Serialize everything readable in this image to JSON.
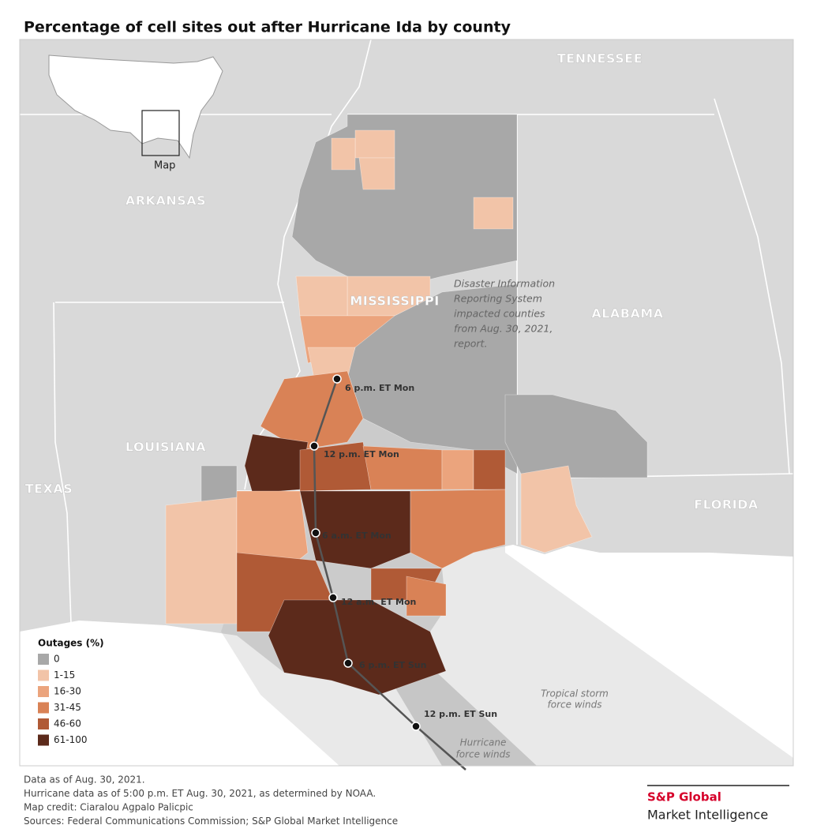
{
  "title": "Percentage of cell sites out after Hurricane Ida by county",
  "inset_label": "Map",
  "state_labels": [
    "TENNESSEE",
    "ARKANSAS",
    "MISSISSIPPI",
    "ALABAMA",
    "LOUISIANA",
    "TEXAS",
    "FLORIDA"
  ],
  "annotation": [
    "Disaster Information",
    "Reporting System",
    "impacted counties",
    "from Aug. 30, 2021,",
    "report."
  ],
  "track_labels": [
    "6 p.m. ET Mon",
    "12 p.m. ET Mon",
    "6 a.m. ET Mon",
    "12 a.m. ET Mon",
    "6 p.m. ET Sun",
    "12 p.m. ET Sun"
  ],
  "wind_labels": {
    "tropical": [
      "Tropical storm",
      "force winds"
    ],
    "hurricane": [
      "Hurricane",
      "force winds"
    ]
  },
  "legend": {
    "title": "Outages (%)",
    "items": [
      {
        "label": "0",
        "color": "#a8a8a8"
      },
      {
        "label": "1-15",
        "color": "#f2c4a8"
      },
      {
        "label": "16-30",
        "color": "#eba47d"
      },
      {
        "label": "31-45",
        "color": "#d98256"
      },
      {
        "label": "46-60",
        "color": "#b05a36"
      },
      {
        "label": "61-100",
        "color": "#5c2a1b"
      }
    ]
  },
  "footer": [
    "Data as of Aug. 30, 2021.",
    "Hurricane data as of 5:00 p.m. ET Aug. 30, 2021, as determined by NOAA.",
    "Map credit: Ciaralou Agpalo Palicpic",
    "Sources: Federal Communications Commission; S&P Global Market Intelligence"
  ],
  "logo": {
    "brand": "S&P Global",
    "sub": "Market Intelligence"
  }
}
